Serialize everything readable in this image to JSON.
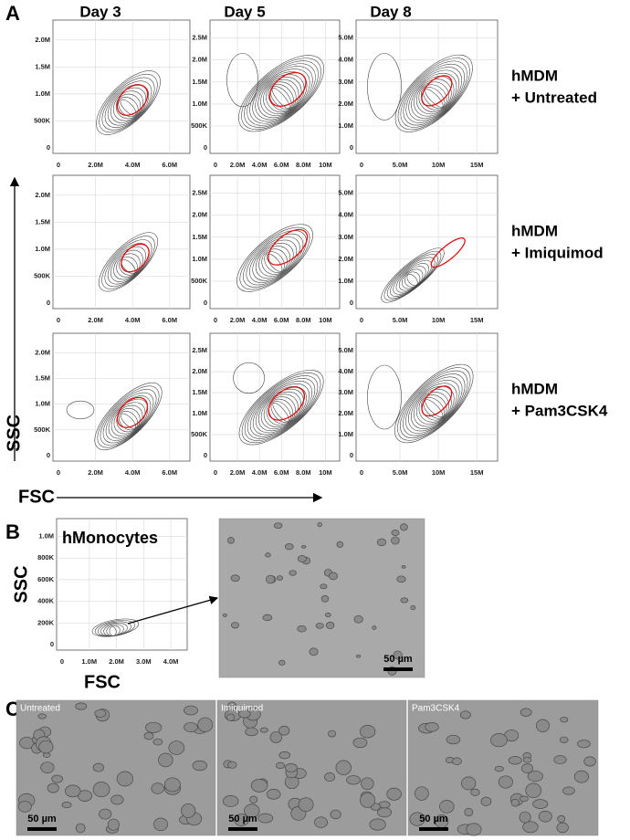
{
  "panel_a": {
    "label": "A",
    "columns": [
      {
        "title": "Day 3",
        "x_ticks": [
          "0",
          "2.0M",
          "4.0M",
          "6.0M"
        ],
        "y_ticks": [
          "0",
          "500K",
          "1.0M",
          "1.5M",
          "2.0M"
        ]
      },
      {
        "title": "Day 5",
        "x_ticks": [
          "0",
          "2.0M",
          "4.0M",
          "6.0M",
          "8.0M",
          "10M"
        ],
        "y_ticks": [
          "0",
          "500K",
          "1.0M",
          "1.5M",
          "2.0M",
          "2.5M"
        ]
      },
      {
        "title": "Day 8",
        "x_ticks": [
          "0",
          "5.0M",
          "10M",
          "15M"
        ],
        "y_ticks": [
          "0",
          "1.0M",
          "2.0M",
          "3.0M",
          "4.0M",
          "5.0M"
        ]
      }
    ],
    "rows": [
      {
        "line1": "hMDM",
        "line2": "+ Untreated"
      },
      {
        "line1": "hMDM",
        "line2": "+ Imiquimod"
      },
      {
        "line1": "hMDM",
        "line2": "+ Pam3CSK4"
      }
    ],
    "y_axis": "SSC",
    "x_axis": "FSC"
  },
  "panel_b": {
    "label": "B",
    "plot_title": "hMonocytes",
    "x_ticks": [
      "0",
      "1.0M",
      "2.0M",
      "3.0M",
      "4.0M"
    ],
    "y_ticks": [
      "0",
      "200K",
      "400K",
      "600K",
      "800K",
      "1.0M"
    ],
    "y_axis": "SSC",
    "x_axis": "FSC",
    "scale_bar": "50 µm"
  },
  "panel_c": {
    "label": "C",
    "images": [
      {
        "caption": "Untreated",
        "scale_bar": "50 µm"
      },
      {
        "caption": "Imiquimod",
        "scale_bar": "50 µm"
      },
      {
        "caption": "Pam3CSK4",
        "scale_bar": "50 µm"
      }
    ]
  }
}
